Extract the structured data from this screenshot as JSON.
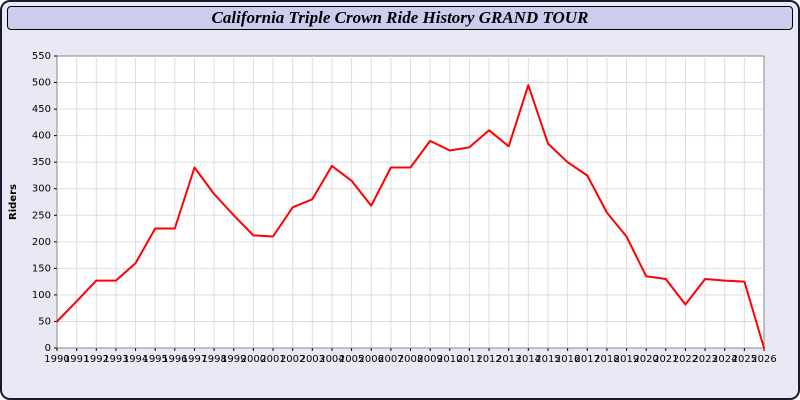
{
  "window": {
    "title": "California Triple Crown Ride History GRAND TOUR"
  },
  "colors": {
    "page_bg": "#e9e9f6",
    "titlebar_bg": "#ccccee",
    "window_border": "#1a1a33",
    "plot_bg": "#ffffff",
    "plot_border": "#888888",
    "grid": "#dddddd",
    "line": "#ff0000",
    "text": "#000000"
  },
  "chart_data": {
    "type": "line",
    "title": "California Triple Crown Ride History GRAND TOUR",
    "xlabel": "",
    "ylabel": "Riders",
    "ylim": [
      0,
      550
    ],
    "y_tick_step": 50,
    "grid": true,
    "legend_position": "none",
    "x": [
      1990,
      1991,
      1992,
      1993,
      1994,
      1995,
      1996,
      1997,
      1998,
      1999,
      2000,
      2001,
      2002,
      2003,
      2004,
      2005,
      2006,
      2007,
      2008,
      2009,
      2010,
      2011,
      2012,
      2013,
      2014,
      2015,
      2016,
      2017,
      2018,
      2019,
      2020,
      2021,
      2022,
      2023,
      2024,
      2025,
      2026
    ],
    "series": [
      {
        "name": "Riders",
        "color": "#ff0000",
        "values": [
          50,
          88,
          127,
          127,
          160,
          225,
          225,
          340,
          290,
          250,
          212,
          210,
          265,
          280,
          343,
          315,
          268,
          340,
          340,
          390,
          372,
          378,
          410,
          380,
          495,
          385,
          350,
          325,
          255,
          210,
          135,
          130,
          82,
          130,
          127,
          125,
          0
        ]
      }
    ]
  }
}
